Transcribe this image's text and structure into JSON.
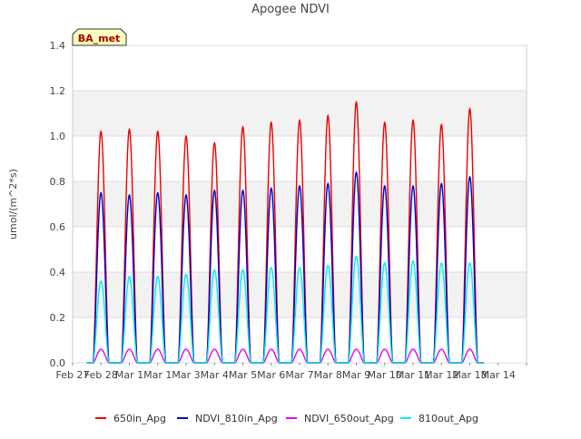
{
  "chart_data": {
    "type": "line",
    "title": "Apogee NDVI",
    "xlabel": "",
    "ylabel": "umol/(m^2*s)",
    "ylim": [
      0,
      1.4
    ],
    "xlim": [
      0,
      16
    ],
    "yticks": [
      0.0,
      0.2,
      0.4,
      0.6,
      0.8,
      1.0,
      1.2,
      1.4
    ],
    "ytick_labels": [
      "0.0",
      "0.2",
      "0.4",
      "0.6",
      "0.8",
      "1.0",
      "1.2",
      "1.4"
    ],
    "xticks": [
      0,
      1,
      2,
      3,
      4,
      5,
      6,
      7,
      8,
      9,
      10,
      11,
      12,
      13,
      14,
      15,
      16
    ],
    "xtick_labels": [
      "Feb 27",
      "Feb 28",
      "Mar 1",
      "Mar 1",
      "Mar 3",
      "Mar 4",
      "Mar 5",
      "Mar 6",
      "Mar 7",
      "Mar 8",
      "Mar 9",
      "Mar 10",
      "Mar 11",
      "Mar 12",
      "Mar 13",
      "Mar 14",
      ""
    ],
    "grid": true,
    "legend_position": "bottom",
    "annotation": "BA_met",
    "series": [
      {
        "name": "650in_Apg",
        "color": "#ee0000",
        "peaks": [
          1.02,
          1.03,
          1.02,
          1.0,
          0.97,
          1.04,
          1.06,
          1.07,
          1.09,
          1.15,
          1.06,
          1.07,
          1.05,
          1.12
        ]
      },
      {
        "name": "NDVI_810in_Apg",
        "color": "#0000cc",
        "peaks": [
          0.75,
          0.74,
          0.75,
          0.74,
          0.76,
          0.76,
          0.77,
          0.78,
          0.79,
          0.84,
          0.78,
          0.78,
          0.79,
          0.82
        ]
      },
      {
        "name": "NDVI_650out_Apg",
        "color": "#ee00ee",
        "peaks": [
          0.06,
          0.06,
          0.06,
          0.06,
          0.06,
          0.06,
          0.06,
          0.06,
          0.06,
          0.06,
          0.06,
          0.06,
          0.06,
          0.06
        ]
      },
      {
        "name": "810out_Apg",
        "color": "#00eeee",
        "peaks": [
          0.36,
          0.38,
          0.38,
          0.39,
          0.41,
          0.41,
          0.42,
          0.42,
          0.43,
          0.47,
          0.44,
          0.45,
          0.44,
          0.44
        ]
      }
    ],
    "day_centers": [
      1.0,
      2.0,
      3.0,
      4.0,
      5.0,
      6.0,
      7.0,
      8.0,
      9.0,
      10.0,
      11.0,
      12.0,
      13.0,
      14.0
    ]
  }
}
